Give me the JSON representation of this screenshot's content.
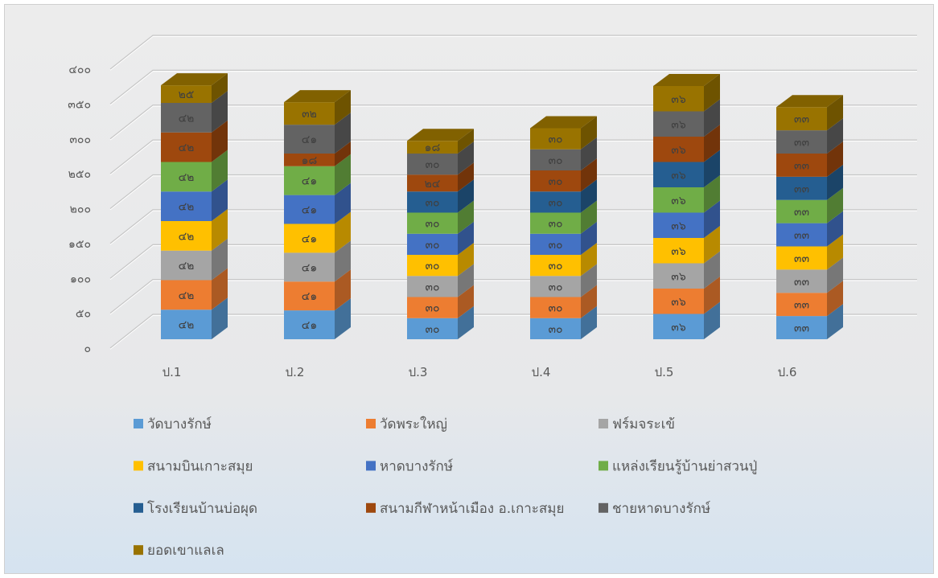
{
  "chart_data": {
    "type": "bar",
    "stacked": true,
    "3d": true,
    "categories": [
      "ป.1",
      "ป.2",
      "ป.3",
      "ป.4",
      "ป.5",
      "ป.6"
    ],
    "ylim": [
      0,
      400
    ],
    "yticks": [
      0,
      50,
      100,
      150,
      200,
      250,
      300,
      350,
      400
    ],
    "ytick_labels": [
      "๐",
      "๕๐",
      "๑๐๐",
      "๑๕๐",
      "๒๐๐",
      "๒๕๐",
      "๓๐๐",
      "๓๕๐",
      "๔๐๐"
    ],
    "grid": true,
    "legend": "bottom",
    "series": [
      {
        "name": "วัดบางรักษ์",
        "color": "#5B9BD5",
        "values": [
          42,
          41,
          30,
          30,
          36,
          33
        ],
        "labels": [
          "๔๒",
          "๔๑",
          "๓๐",
          "๓๐",
          "๓๖",
          "๓๓"
        ]
      },
      {
        "name": "วัดพระใหญ่",
        "color": "#ED7D31",
        "values": [
          42,
          41,
          30,
          30,
          36,
          33
        ],
        "labels": [
          "๔๒",
          "๔๑",
          "๓๐",
          "๓๐",
          "๓๖",
          "๓๓"
        ]
      },
      {
        "name": "ฟร์มจระเข้",
        "color": "#A5A5A5",
        "values": [
          42,
          41,
          30,
          30,
          36,
          33
        ],
        "labels": [
          "๔๒",
          "๔๑",
          "๓๐",
          "๓๐",
          "๓๖",
          "๓๓"
        ]
      },
      {
        "name": "สนามบินเกาะสมุย",
        "color": "#FFC000",
        "values": [
          42,
          41,
          30,
          30,
          36,
          33
        ],
        "labels": [
          "๔๒",
          "๔๑",
          "๓๐",
          "๓๐",
          "๓๖",
          "๓๓"
        ]
      },
      {
        "name": "หาดบางรักษ์",
        "color": "#4472C4",
        "values": [
          42,
          41,
          30,
          30,
          36,
          33
        ],
        "labels": [
          "๔๒",
          "๔๑",
          "๓๐",
          "๓๐",
          "๓๖",
          "๓๓"
        ]
      },
      {
        "name": "แหล่งเรียนรู้บ้านย่าสวนปู่",
        "color": "#70AD47",
        "values": [
          42,
          41,
          30,
          30,
          36,
          33
        ],
        "labels": [
          "๔๒",
          "๔๑",
          "๓๐",
          "๓๐",
          "๓๖",
          "๓๓"
        ]
      },
      {
        "name": "โรงเรียนบ้านบ่อผุด",
        "color": "#255E91",
        "values": [
          null,
          null,
          30,
          30,
          36,
          33
        ],
        "labels": [
          "",
          "",
          "๓๐",
          "๓๐",
          "๓๖",
          "๓๓"
        ]
      },
      {
        "name": "สนามกีฬาหน้าเมือง อ.เกาะสมุย",
        "color": "#9E480E",
        "values": [
          42,
          18,
          24,
          30,
          36,
          33
        ],
        "labels": [
          "๔๒",
          "๑๘",
          "๒๔",
          "๓๐",
          "๓๖",
          "๓๓"
        ]
      },
      {
        "name": "ชายหาดบางรักษ์",
        "color": "#636363",
        "values": [
          42,
          41,
          30,
          30,
          36,
          33
        ],
        "labels": [
          "๔๒",
          "๔๑",
          "๓๐",
          "๓๐",
          "๓๖",
          "๓๓"
        ]
      },
      {
        "name": "ยอดเขาแลเล",
        "color": "#997300",
        "values": [
          25,
          32,
          18,
          30,
          36,
          33
        ],
        "labels": [
          "๒๕",
          "๓๒",
          "๑๘",
          "๓๐",
          "๓๖",
          "๓๓"
        ]
      }
    ]
  }
}
